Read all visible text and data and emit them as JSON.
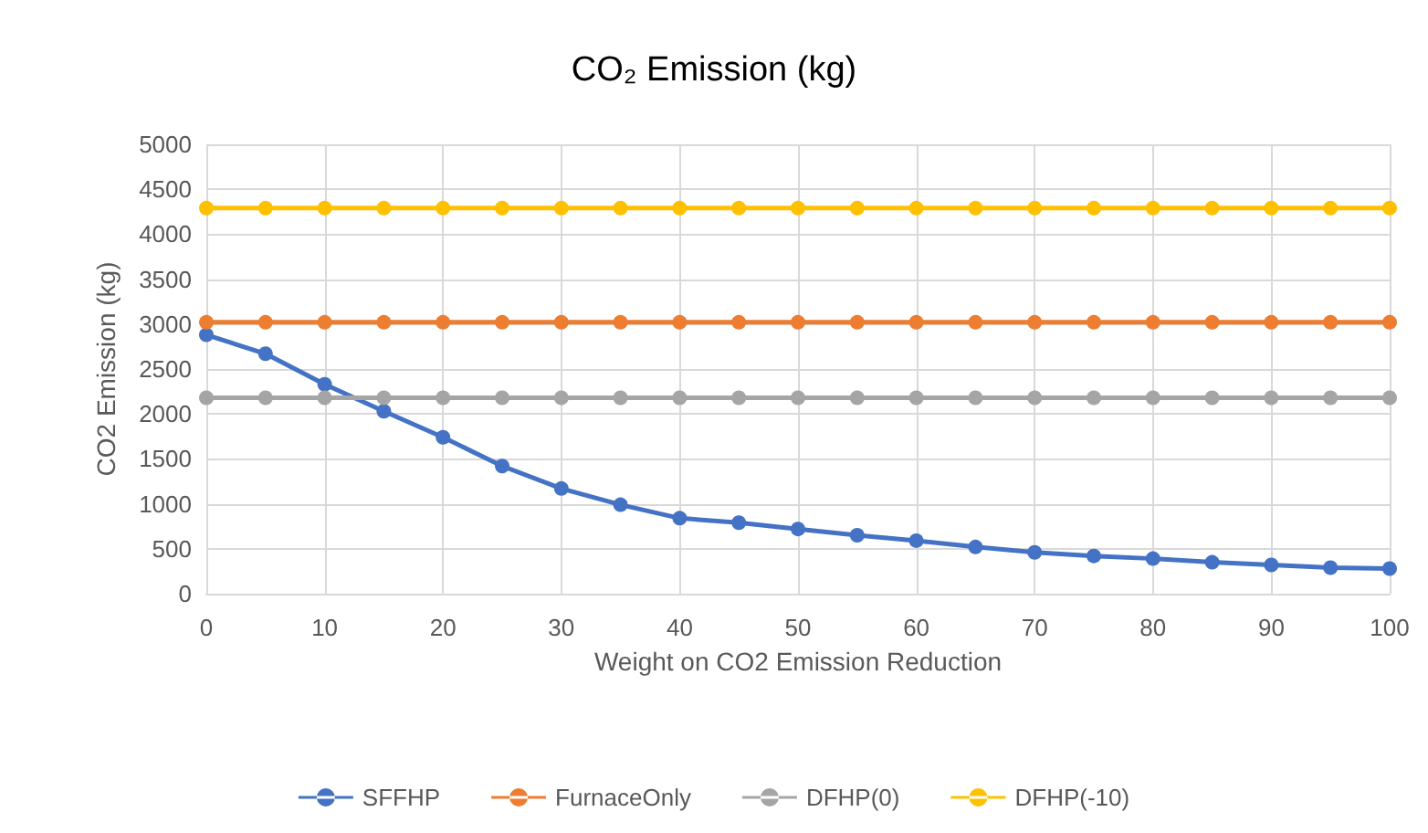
{
  "chart_data": {
    "type": "line",
    "title": "CO₂ Emission (kg)",
    "xlabel": "Weight on CO2 Emission Reduction",
    "ylabel": "CO2 Emission (kg)",
    "x": [
      0,
      5,
      10,
      15,
      20,
      25,
      30,
      35,
      40,
      45,
      50,
      55,
      60,
      65,
      70,
      75,
      80,
      85,
      90,
      95,
      100
    ],
    "series": [
      {
        "name": "SFFHP",
        "color": "#4472c4",
        "values": [
          2880,
          2670,
          2330,
          2030,
          1740,
          1420,
          1170,
          990,
          840,
          790,
          720,
          650,
          590,
          520,
          460,
          420,
          390,
          350,
          320,
          290,
          280
        ]
      },
      {
        "name": "FurnaceOnly",
        "color": "#ed7d31",
        "values": [
          3020,
          3020,
          3020,
          3020,
          3020,
          3020,
          3020,
          3020,
          3020,
          3020,
          3020,
          3020,
          3020,
          3020,
          3020,
          3020,
          3020,
          3020,
          3020,
          3020,
          3020
        ]
      },
      {
        "name": "DFHP(0)",
        "color": "#a5a5a5",
        "values": [
          2180,
          2180,
          2180,
          2180,
          2180,
          2180,
          2180,
          2180,
          2180,
          2180,
          2180,
          2180,
          2180,
          2180,
          2180,
          2180,
          2180,
          2180,
          2180,
          2180,
          2180
        ]
      },
      {
        "name": "DFHP(-10)",
        "color": "#ffc000",
        "values": [
          4290,
          4290,
          4290,
          4290,
          4290,
          4290,
          4290,
          4290,
          4290,
          4290,
          4290,
          4290,
          4290,
          4290,
          4290,
          4290,
          4290,
          4290,
          4290,
          4290,
          4290
        ]
      }
    ],
    "xlim": [
      0,
      100
    ],
    "xticks": [
      0,
      10,
      20,
      30,
      40,
      50,
      60,
      70,
      80,
      90,
      100
    ],
    "ylim": [
      0,
      5000
    ],
    "yticks": [
      0,
      500,
      1000,
      1500,
      2000,
      2500,
      3000,
      3500,
      4000,
      4500,
      5000
    ],
    "grid": true,
    "legend": "bottom",
    "marker": "circle",
    "line_style": "solid"
  }
}
